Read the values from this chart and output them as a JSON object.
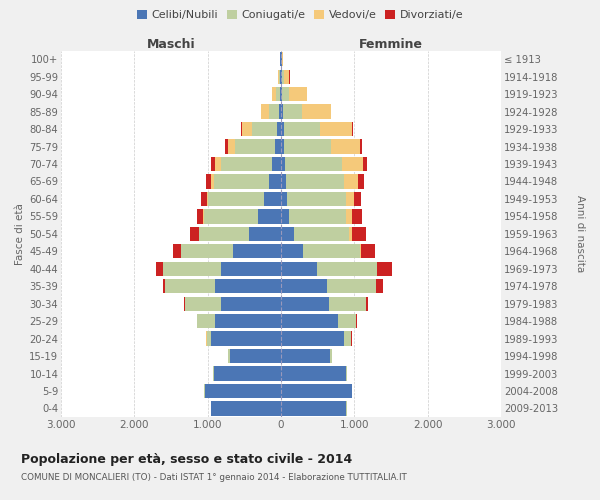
{
  "age_groups": [
    "0-4",
    "5-9",
    "10-14",
    "15-19",
    "20-24",
    "25-29",
    "30-34",
    "35-39",
    "40-44",
    "45-49",
    "50-54",
    "55-59",
    "60-64",
    "65-69",
    "70-74",
    "75-79",
    "80-84",
    "85-89",
    "90-94",
    "95-99",
    "100+"
  ],
  "birth_years": [
    "2009-2013",
    "2004-2008",
    "1999-2003",
    "1994-1998",
    "1989-1993",
    "1984-1988",
    "1979-1983",
    "1974-1978",
    "1969-1973",
    "1964-1968",
    "1959-1963",
    "1954-1958",
    "1949-1953",
    "1944-1948",
    "1939-1943",
    "1934-1938",
    "1929-1933",
    "1924-1928",
    "1919-1923",
    "1914-1918",
    "≤ 1913"
  ],
  "colors": {
    "celibi": "#4b76b5",
    "coniugati": "#bfcfa0",
    "vedovi": "#f5c97a",
    "divorziati": "#cc2222"
  },
  "maschi": {
    "celibi": [
      950,
      1040,
      920,
      700,
      950,
      900,
      820,
      900,
      820,
      650,
      440,
      310,
      230,
      160,
      120,
      80,
      60,
      30,
      20,
      15,
      10
    ],
    "coniugati": [
      5,
      5,
      5,
      18,
      65,
      240,
      490,
      680,
      790,
      710,
      680,
      740,
      760,
      760,
      700,
      550,
      330,
      130,
      50,
      10,
      2
    ],
    "vedovi": [
      0,
      0,
      0,
      0,
      3,
      3,
      3,
      3,
      3,
      3,
      4,
      8,
      18,
      35,
      75,
      95,
      145,
      110,
      55,
      15,
      2
    ],
    "divorziati": [
      0,
      0,
      0,
      0,
      4,
      8,
      12,
      28,
      95,
      115,
      115,
      95,
      85,
      75,
      65,
      35,
      18,
      8,
      4,
      3,
      1
    ]
  },
  "femmine": {
    "celibi": [
      890,
      970,
      890,
      670,
      860,
      775,
      660,
      620,
      490,
      295,
      175,
      115,
      85,
      65,
      55,
      45,
      35,
      25,
      18,
      15,
      8
    ],
    "coniugati": [
      3,
      3,
      4,
      18,
      95,
      245,
      495,
      675,
      815,
      775,
      745,
      775,
      795,
      790,
      770,
      640,
      490,
      260,
      90,
      25,
      5
    ],
    "vedovi": [
      0,
      0,
      0,
      0,
      3,
      3,
      3,
      4,
      8,
      18,
      48,
      75,
      115,
      195,
      290,
      395,
      440,
      390,
      240,
      75,
      12
    ],
    "divorziati": [
      0,
      0,
      0,
      0,
      4,
      12,
      28,
      95,
      195,
      195,
      195,
      135,
      95,
      85,
      55,
      28,
      18,
      8,
      4,
      3,
      1
    ]
  },
  "title": "Popolazione per età, sesso e stato civile - 2014",
  "subtitle": "COMUNE DI MONCALIERI (TO) - Dati ISTAT 1° gennaio 2014 - Elaborazione TUTTITALIA.IT",
  "xlabel_left": "Maschi",
  "xlabel_right": "Femmine",
  "ylabel_left": "Fasce di età",
  "ylabel_right": "Anni di nascita",
  "xlim": 3000,
  "xtick_vals": [
    -3000,
    -2000,
    -1000,
    0,
    1000,
    2000,
    3000
  ],
  "xtick_labels": [
    "3.000",
    "2.000",
    "1.000",
    "0",
    "1.000",
    "2.000",
    "3.000"
  ],
  "legend_labels": [
    "Celibi/Nubili",
    "Coniugati/e",
    "Vedovi/e",
    "Divorziati/e"
  ],
  "bg_color": "#f0f0f0",
  "bar_bg_color": "#ffffff"
}
